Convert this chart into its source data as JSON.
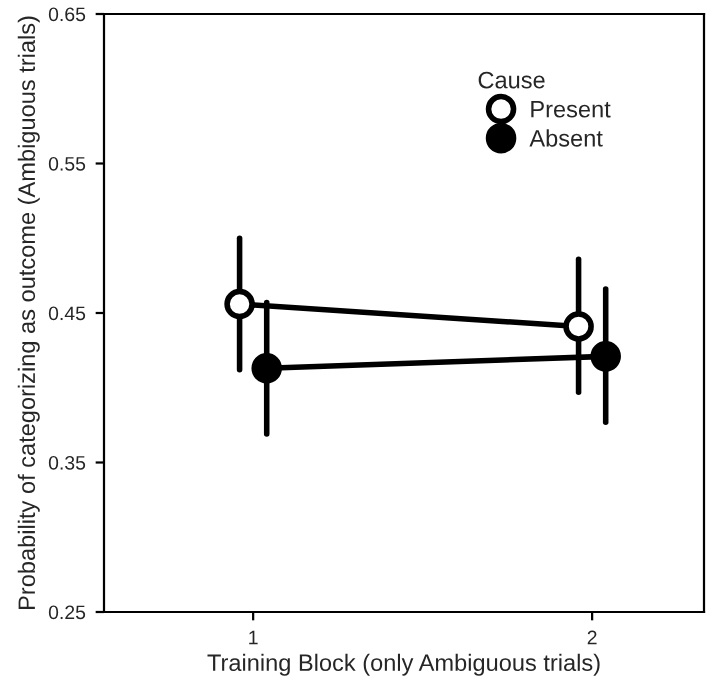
{
  "chart_data": {
    "type": "line",
    "xlabel": "Training Block (only Ambiguous trials)",
    "ylabel": "Probability of categorizing as outcome (Ambiguous trials)",
    "legend_title": "Cause",
    "legend": "top right",
    "marker": "circle",
    "line_style": "solid",
    "grid": false,
    "xlim": [
      0.56,
      2.33
    ],
    "xticks": [
      1,
      2
    ],
    "series": [
      {
        "name": "Present",
        "x": [
          0.96,
          1.96
        ],
        "color": "#000000",
        "colors": [
          "#ffffff",
          "#ffffff"
        ],
        "values": [
          0.456,
          0.441
        ],
        "errors": [
          [
            0.412,
            0.5
          ],
          [
            0.397,
            0.486
          ]
        ]
      },
      {
        "name": "Absent",
        "x": [
          1.04,
          2.04
        ],
        "color": "#000000",
        "values": [
          0.413,
          0.421
        ],
        "errors": [
          [
            0.369,
            0.457
          ],
          [
            0.377,
            0.466
          ]
        ]
      }
    ],
    "ylim": [
      0.25,
      0.65
    ],
    "yticks": [
      {
        "value": 0.25,
        "label": "0.25"
      },
      {
        "value": 0.35,
        "label": "0.35"
      },
      {
        "value": 0.45,
        "label": "0.45"
      },
      {
        "value": 0.55,
        "label": "0.55"
      },
      {
        "value": 0.65,
        "label": "0.65"
      }
    ]
  }
}
